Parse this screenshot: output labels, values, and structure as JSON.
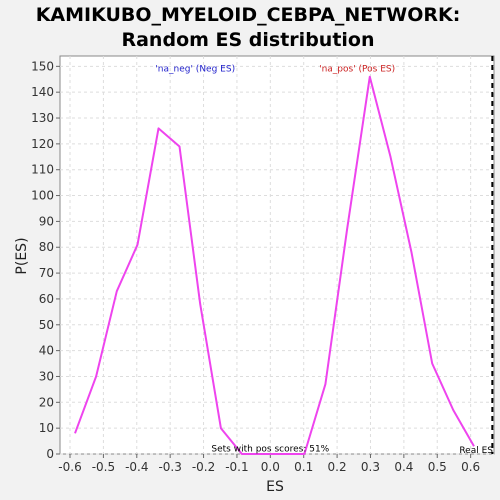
{
  "chart_data": {
    "type": "line",
    "title_line1": "KAMIKUBO_MYELOID_CEBPA_NETWORK:",
    "title_line2": "Random ES distribution",
    "xlabel": "ES",
    "ylabel": "P(ES)",
    "xlim": [
      -0.63,
      0.67
    ],
    "ylim": [
      0,
      154
    ],
    "xticks": [
      -0.6,
      -0.5,
      -0.4,
      -0.3,
      -0.2,
      -0.1,
      0.0,
      0.1,
      0.2,
      0.3,
      0.4,
      0.5,
      0.6
    ],
    "xtick_labels": [
      "-0.6",
      "-0.5",
      "-0.4",
      "-0.3",
      "-0.2",
      "-0.1",
      "0.0",
      "0.1",
      "0.2",
      "0.3",
      "0.4",
      "0.5",
      "0.6"
    ],
    "yticks": [
      0,
      10,
      20,
      30,
      40,
      50,
      60,
      70,
      80,
      90,
      100,
      110,
      120,
      130,
      140,
      150
    ],
    "ytick_labels": [
      "0",
      "10",
      "20",
      "30",
      "40",
      "50",
      "60",
      "70",
      "80",
      "90",
      "100",
      "110",
      "120",
      "130",
      "140",
      "150"
    ],
    "grid": true,
    "series": [
      {
        "color": "#ee44ee",
        "x": [
          -0.585,
          -0.522,
          -0.46,
          -0.398,
          -0.335,
          -0.272,
          -0.21,
          -0.148,
          -0.085,
          -0.023,
          0.04,
          0.102,
          0.165,
          0.23,
          0.298,
          0.36,
          0.423,
          0.485,
          0.548,
          0.61
        ],
        "y": [
          8,
          30,
          63,
          81,
          126,
          119,
          58,
          10,
          0,
          0,
          0,
          0,
          27,
          87,
          146,
          115,
          78,
          35,
          17,
          3
        ]
      }
    ],
    "annotations": {
      "neg_label": "'na_neg' (Neg ES)",
      "neg_color": "#2222cc",
      "pos_label": "'na_pos' (Pos ES)",
      "pos_color": "#cc2222",
      "sets_with_pos": "Sets with pos scores: 51%",
      "real_es_label": "Real ES",
      "real_es_x": 0.665
    }
  }
}
